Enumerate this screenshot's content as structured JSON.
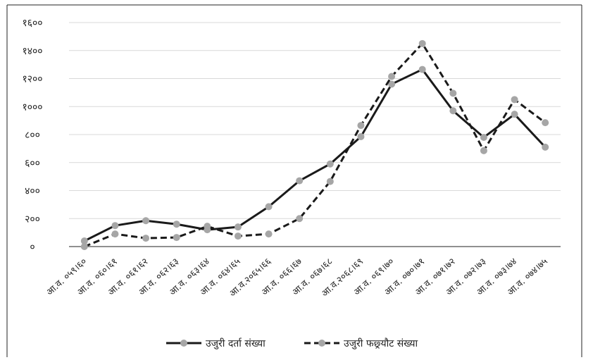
{
  "chart_data": {
    "type": "line",
    "categories": [
      "आ.व. ०५९।६०",
      "आ.व. ०६०।६१",
      "आ.व. ०६१।६२",
      "आ.व. ०६२।६३",
      "आ.व. ०६३।६४",
      "आ.व. ०६४।६५",
      "आ.व.२०६५।६६",
      "आ.व. ०६६।६७",
      "आ.व. ०६७।६८",
      "आ.व.२०६८।६९",
      "आ.व. ०६९।७०",
      "आ.व. ०७०।७१",
      "आ.व. ०७१।७२",
      "आ.व. ०७२।७३",
      "आ.व. ०७३।७४",
      "आ.व. ०७४।७५"
    ],
    "series": [
      {
        "name": "उजुरी दर्ता संख्या",
        "style": "solid",
        "values": [
          40,
          150,
          185,
          160,
          120,
          140,
          285,
          470,
          590,
          785,
          1160,
          1265,
          970,
          780,
          945,
          710
        ]
      },
      {
        "name": "उजुरी फछ्र्यौट संख्या",
        "style": "dashed",
        "values": [
          0,
          90,
          60,
          65,
          145,
          75,
          90,
          200,
          465,
          865,
          1215,
          1450,
          1095,
          685,
          1050,
          885
        ]
      }
    ],
    "y_ticks": [
      "०",
      "२००",
      "४००",
      "६००",
      "८००",
      "१०००",
      "१२००",
      "१४००",
      "१६००"
    ],
    "ylim": [
      0,
      1600
    ],
    "grid": true,
    "legend_position": "bottom",
    "line_color": "#1a1a1a",
    "marker_color": "#a6a6a6",
    "grid_color": "#d9d9d9"
  }
}
